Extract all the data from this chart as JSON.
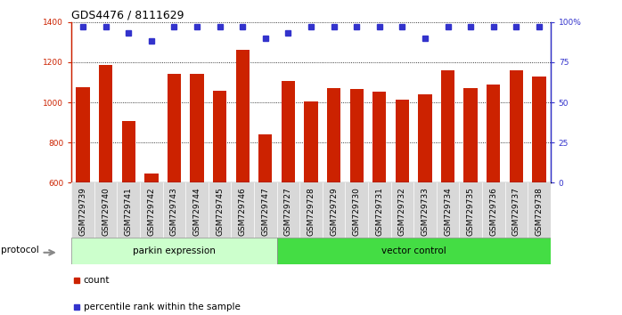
{
  "title": "GDS4476 / 8111629",
  "samples": [
    "GSM729739",
    "GSM729740",
    "GSM729741",
    "GSM729742",
    "GSM729743",
    "GSM729744",
    "GSM729745",
    "GSM729746",
    "GSM729747",
    "GSM729727",
    "GSM729728",
    "GSM729729",
    "GSM729730",
    "GSM729731",
    "GSM729732",
    "GSM729733",
    "GSM729734",
    "GSM729735",
    "GSM729736",
    "GSM729737",
    "GSM729738"
  ],
  "bar_values": [
    1075,
    1185,
    905,
    645,
    1140,
    1140,
    1060,
    1260,
    840,
    1105,
    1005,
    1070,
    1065,
    1055,
    1015,
    1040,
    1160,
    1070,
    1090,
    1160,
    1130
  ],
  "percentile_values": [
    97,
    97,
    93,
    88,
    97,
    97,
    97,
    97,
    90,
    93,
    97,
    97,
    97,
    97,
    97,
    90,
    97,
    97,
    97,
    97,
    97
  ],
  "bar_color": "#cc2200",
  "percentile_color": "#3333cc",
  "ylim_left": [
    600,
    1400
  ],
  "ylim_right": [
    0,
    100
  ],
  "yticks_left": [
    600,
    800,
    1000,
    1200,
    1400
  ],
  "yticks_right": [
    0,
    25,
    50,
    75,
    100
  ],
  "yticklabels_right": [
    "0",
    "25",
    "50",
    "75",
    "100%"
  ],
  "groups": [
    {
      "label": "parkin expression",
      "count": 9,
      "color": "#ccffcc"
    },
    {
      "label": "vector control",
      "count": 12,
      "color": "#44dd44"
    }
  ],
  "protocol_label": "protocol",
  "legend_items": [
    {
      "label": "count",
      "color": "#cc2200"
    },
    {
      "label": "percentile rank within the sample",
      "color": "#3333cc"
    }
  ],
  "title_fontsize": 9,
  "tick_fontsize": 6.5,
  "label_fontsize": 8
}
